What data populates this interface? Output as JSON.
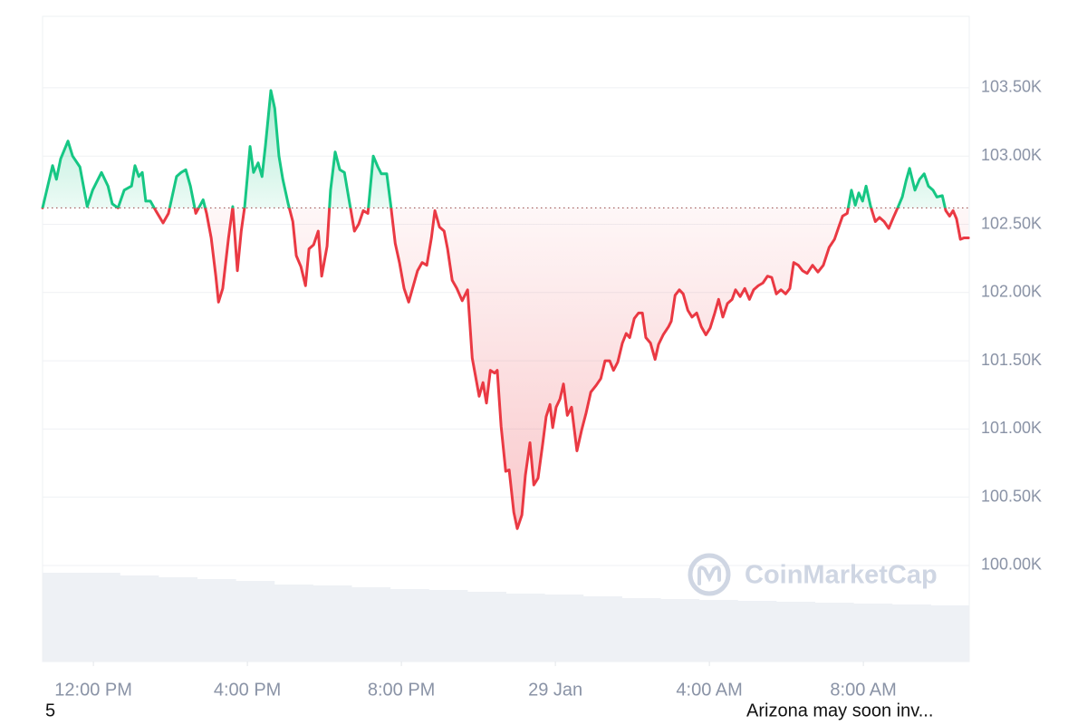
{
  "chart_data": {
    "type": "line",
    "x": [
      -1.32,
      -1.06,
      -0.96,
      -0.85,
      -0.66,
      -0.54,
      -0.35,
      -0.16,
      -0.02,
      0.21,
      0.38,
      0.49,
      0.64,
      0.8,
      0.99,
      1.08,
      1.18,
      1.27,
      1.36,
      1.48,
      1.62,
      1.81,
      1.95,
      2.16,
      2.28,
      2.4,
      2.52,
      2.66,
      2.85,
      2.94,
      3.06,
      3.18,
      3.25,
      3.36,
      3.51,
      3.62,
      3.74,
      3.84,
      3.93,
      4.07,
      4.16,
      4.28,
      4.38,
      4.47,
      4.61,
      4.71,
      4.82,
      4.92,
      5.06,
      5.18,
      5.27,
      5.39,
      5.51,
      5.6,
      5.72,
      5.84,
      5.93,
      6.07,
      6.16,
      6.28,
      6.4,
      6.52,
      6.64,
      6.78,
      6.89,
      7.01,
      7.13,
      7.27,
      7.39,
      7.48,
      7.62,
      7.72,
      7.84,
      7.95,
      8.07,
      8.19,
      8.31,
      8.42,
      8.54,
      8.66,
      8.78,
      8.87,
      8.99,
      9.11,
      9.2,
      9.32,
      9.44,
      9.58,
      9.72,
      9.84,
      9.95,
      10.02,
      10.12,
      10.21,
      10.31,
      10.42,
      10.49,
      10.59,
      10.71,
      10.8,
      10.92,
      11.01,
      11.13,
      11.22,
      11.34,
      11.44,
      11.55,
      11.67,
      11.76,
      11.86,
      11.93,
      12.02,
      12.12,
      12.21,
      12.31,
      12.42,
      12.56,
      12.68,
      12.8,
      12.92,
      13.06,
      13.18,
      13.29,
      13.41,
      13.51,
      13.62,
      13.74,
      13.84,
      13.93,
      14.05,
      14.16,
      14.26,
      14.35,
      14.47,
      14.59,
      14.68,
      14.8,
      14.94,
      15.01,
      15.11,
      15.22,
      15.32,
      15.44,
      15.55,
      15.67,
      15.79,
      15.91,
      16.02,
      16.14,
      16.24,
      16.35,
      16.47,
      16.59,
      16.68,
      16.8,
      16.92,
      17.04,
      17.15,
      17.27,
      17.39,
      17.51,
      17.62,
      17.74,
      17.86,
      17.98,
      18.09,
      18.19,
      18.31,
      18.42,
      18.54,
      18.68,
      18.82,
      18.96,
      19.11,
      19.25,
      19.36,
      19.46,
      19.58,
      19.69,
      19.79,
      19.88,
      19.98,
      20.07,
      20.19,
      20.31,
      20.42,
      20.54,
      20.66,
      20.78,
      20.89,
      21.01,
      21.11,
      21.2,
      21.34,
      21.46,
      21.58,
      21.69,
      21.81,
      21.91,
      22.05,
      22.14,
      22.24,
      22.33,
      22.42,
      22.52,
      22.61,
      22.73
    ],
    "values": [
      102.62,
      102.93,
      102.83,
      102.98,
      103.11,
      103.0,
      102.92,
      102.63,
      102.75,
      102.88,
      102.78,
      102.65,
      102.62,
      102.75,
      102.78,
      102.93,
      102.85,
      102.88,
      102.67,
      102.67,
      102.6,
      102.51,
      102.58,
      102.85,
      102.88,
      102.9,
      102.78,
      102.58,
      102.68,
      102.58,
      102.4,
      102.12,
      101.93,
      102.03,
      102.4,
      102.63,
      102.16,
      102.45,
      102.63,
      103.07,
      102.88,
      102.95,
      102.85,
      103.08,
      103.48,
      103.35,
      103.0,
      102.83,
      102.65,
      102.52,
      102.27,
      102.19,
      102.05,
      102.32,
      102.35,
      102.45,
      102.12,
      102.34,
      102.75,
      103.03,
      102.9,
      102.88,
      102.68,
      102.45,
      102.5,
      102.6,
      102.58,
      103.0,
      102.92,
      102.87,
      102.87,
      102.65,
      102.36,
      102.22,
      102.03,
      101.93,
      102.05,
      102.16,
      102.22,
      102.2,
      102.4,
      102.6,
      102.48,
      102.45,
      102.32,
      102.09,
      102.03,
      101.94,
      102.02,
      101.52,
      101.35,
      101.24,
      101.34,
      101.19,
      101.43,
      101.41,
      101.43,
      101.02,
      100.69,
      100.7,
      100.39,
      100.27,
      100.37,
      100.66,
      100.9,
      100.59,
      100.64,
      100.89,
      101.09,
      101.18,
      101.01,
      101.16,
      101.22,
      101.33,
      101.1,
      101.16,
      100.84,
      100.99,
      101.12,
      101.27,
      101.32,
      101.37,
      101.5,
      101.5,
      101.43,
      101.49,
      101.63,
      101.7,
      101.67,
      101.81,
      101.85,
      101.85,
      101.67,
      101.63,
      101.51,
      101.62,
      101.69,
      101.75,
      101.79,
      101.98,
      102.02,
      101.99,
      101.87,
      101.82,
      101.85,
      101.75,
      101.69,
      101.74,
      101.85,
      101.95,
      101.82,
      101.92,
      101.95,
      102.02,
      101.97,
      102.03,
      101.95,
      102.02,
      102.05,
      102.07,
      102.12,
      102.11,
      101.99,
      102.02,
      101.99,
      102.03,
      102.22,
      102.2,
      102.16,
      102.14,
      102.2,
      102.15,
      102.2,
      102.33,
      102.39,
      102.48,
      102.56,
      102.58,
      102.75,
      102.64,
      102.73,
      102.67,
      102.78,
      102.63,
      102.52,
      102.55,
      102.52,
      102.47,
      102.55,
      102.62,
      102.7,
      102.82,
      102.91,
      102.75,
      102.83,
      102.87,
      102.78,
      102.75,
      102.7,
      102.71,
      102.6,
      102.56,
      102.6,
      102.54,
      102.39,
      102.4,
      102.4
    ],
    "colors": {
      "above": "#16c784",
      "below": "#ea3943"
    },
    "xlim": [
      -1.32,
      22.75
    ],
    "ylim": [
      99.296,
      104.024
    ],
    "xticks": [
      {
        "value": 0,
        "label": "12:00 PM"
      },
      {
        "value": 4,
        "label": "4:00 PM"
      },
      {
        "value": 8,
        "label": "8:00 PM"
      },
      {
        "value": 12,
        "label": "29 Jan"
      },
      {
        "value": 16,
        "label": "4:00 AM"
      },
      {
        "value": 20,
        "label": "8:00 AM"
      }
    ],
    "yticks": [
      {
        "value": 100,
        "label": "100.00K"
      },
      {
        "value": 100.5,
        "label": "100.50K"
      },
      {
        "value": 101,
        "label": "101.00K"
      },
      {
        "value": 101.5,
        "label": "101.50K"
      },
      {
        "value": 102,
        "label": "102.00K"
      },
      {
        "value": 102.5,
        "label": "102.50K"
      },
      {
        "value": 103,
        "label": "103.00K"
      },
      {
        "value": 103.5,
        "label": "103.50K"
      }
    ],
    "grid": true,
    "watermark": "CoinMarketCap",
    "volume": {
      "values": [
        98,
        98,
        95,
        93,
        91,
        89,
        85,
        84,
        82,
        80,
        79,
        77,
        75,
        74,
        72,
        70,
        69,
        68,
        67,
        66,
        65,
        64,
        63,
        62
      ],
      "lim": [
        0,
        100
      ],
      "color": "#eef1f5"
    }
  },
  "footer": {
    "left": "5",
    "right": "Arizona may soon inv..."
  }
}
